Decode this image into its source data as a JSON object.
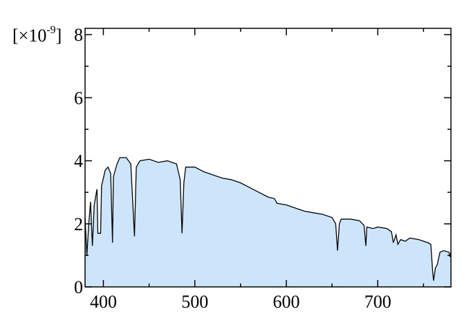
{
  "chart_data": {
    "type": "area",
    "y_unit": {
      "base": "[×10",
      "exponent": "-9",
      "suffix": "]"
    },
    "x": [
      380,
      382,
      384,
      386,
      388,
      390,
      393,
      394,
      397,
      398,
      402,
      405,
      408,
      410,
      411,
      415,
      418,
      425,
      430,
      434,
      436,
      440,
      450,
      460,
      470,
      480,
      484,
      486,
      488,
      490,
      500,
      510,
      520,
      530,
      540,
      550,
      560,
      570,
      580,
      587,
      590,
      600,
      610,
      620,
      630,
      640,
      650,
      654,
      656,
      658,
      660,
      670,
      680,
      685,
      687,
      688,
      695,
      700,
      710,
      715,
      717,
      720,
      722,
      725,
      730,
      735,
      745,
      755,
      758,
      760,
      761,
      763,
      765,
      768,
      772,
      778,
      779,
      780
    ],
    "series": [
      {
        "color": "#000000",
        "fill": "#cce5fa",
        "values": [
          2.2,
          1.0,
          2.0,
          2.7,
          1.3,
          2.6,
          3.1,
          1.7,
          1.7,
          3.2,
          3.7,
          3.8,
          3.6,
          1.4,
          3.5,
          3.9,
          4.1,
          4.1,
          3.9,
          1.6,
          3.8,
          4.0,
          4.05,
          3.95,
          4.0,
          3.9,
          3.4,
          1.7,
          3.3,
          3.8,
          3.8,
          3.65,
          3.55,
          3.45,
          3.4,
          3.3,
          3.15,
          3.0,
          2.85,
          2.8,
          2.65,
          2.6,
          2.5,
          2.4,
          2.35,
          2.3,
          2.2,
          2.0,
          1.15,
          2.0,
          2.15,
          2.15,
          2.1,
          1.95,
          1.3,
          1.9,
          1.85,
          1.9,
          1.85,
          1.75,
          1.4,
          1.65,
          1.35,
          1.5,
          1.45,
          1.55,
          1.5,
          1.4,
          1.35,
          0.5,
          0.2,
          0.6,
          0.7,
          1.1,
          1.15,
          1.1,
          0.95,
          1.1
        ]
      }
    ],
    "xlim": [
      380,
      780
    ],
    "xticks": [
      400,
      500,
      600,
      700
    ],
    "xminorticks": [
      450,
      550,
      650,
      750
    ],
    "ylim": [
      0,
      8.2
    ],
    "yticks": [
      0,
      2,
      4,
      6,
      8
    ],
    "yminorticks": [
      1,
      3,
      5,
      7
    ]
  }
}
